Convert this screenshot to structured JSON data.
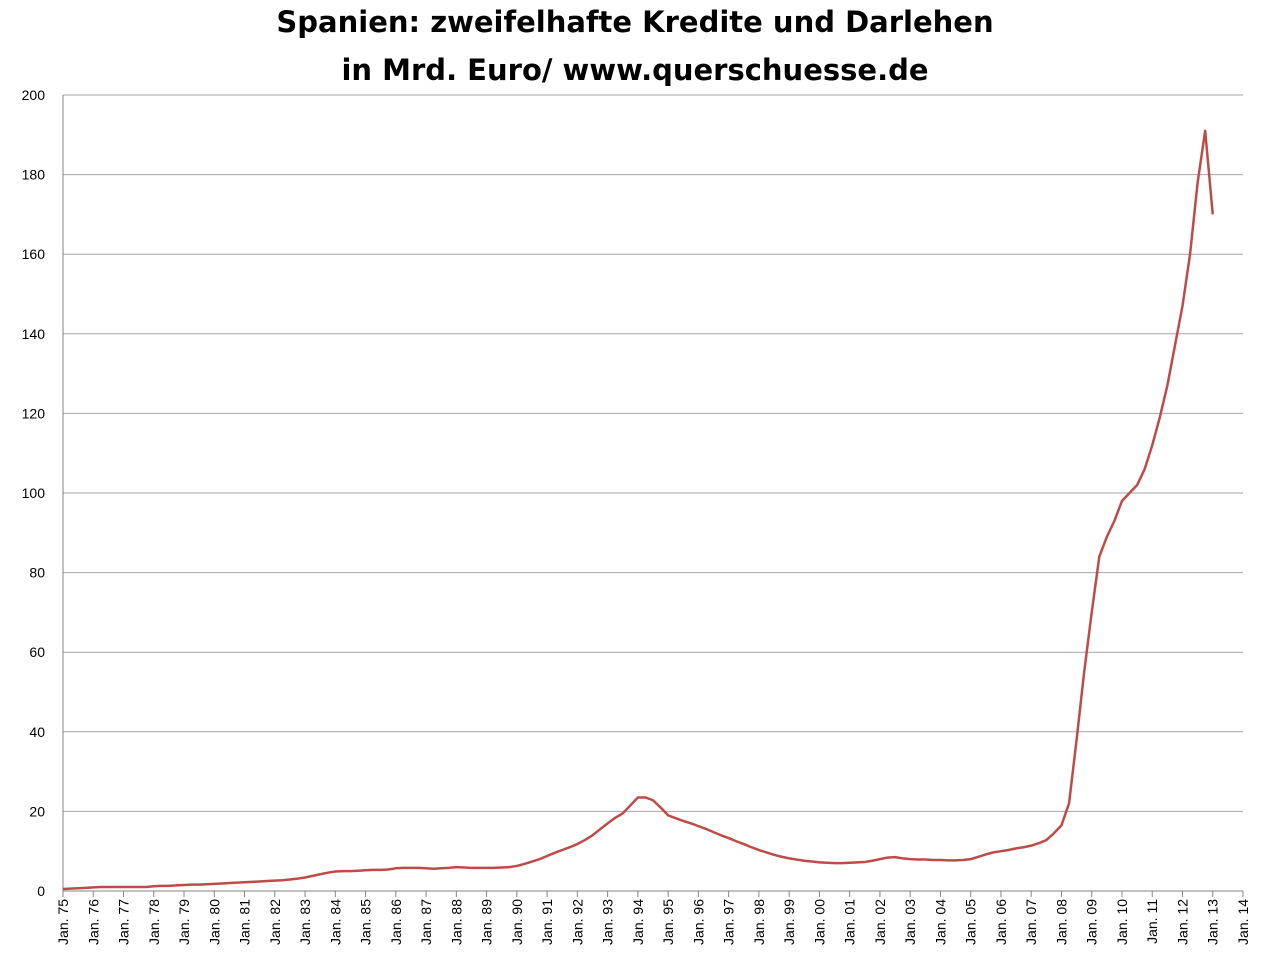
{
  "chart_data": {
    "type": "line",
    "title": "Spanien: zweifelhafte Kredite und Darlehen",
    "subtitle": "in Mrd. Euro/ www.querschuesse.de",
    "categories": [
      "Jan. 75",
      null,
      null,
      null,
      "Jan. 76",
      null,
      null,
      null,
      "Jan. 77",
      null,
      null,
      null,
      "Jan. 78",
      null,
      null,
      null,
      "Jan. 79",
      null,
      null,
      null,
      "Jan. 80",
      null,
      null,
      null,
      "Jan. 81",
      null,
      null,
      null,
      "Jan. 82",
      null,
      null,
      null,
      "Jan. 83",
      null,
      null,
      null,
      "Jan. 84",
      null,
      null,
      null,
      "Jan. 85",
      null,
      null,
      null,
      "Jan. 86",
      null,
      null,
      null,
      "Jan. 87",
      null,
      null,
      null,
      "Jan. 88",
      null,
      null,
      null,
      "Jan. 89",
      null,
      null,
      null,
      "Jan. 90",
      null,
      null,
      null,
      "Jan. 91",
      null,
      null,
      null,
      "Jan. 92",
      null,
      null,
      null,
      "Jan. 93",
      null,
      null,
      null,
      "Jan. 94",
      null,
      null,
      null,
      "Jan. 95",
      null,
      null,
      null,
      "Jan. 96",
      null,
      null,
      null,
      "Jan. 97",
      null,
      null,
      null,
      "Jan. 98",
      null,
      null,
      null,
      "Jan. 99",
      null,
      null,
      null,
      "Jan. 00",
      null,
      null,
      null,
      "Jan. 01",
      null,
      null,
      null,
      "Jan. 02",
      null,
      null,
      null,
      "Jan. 03",
      null,
      null,
      null,
      "Jan. 04",
      null,
      null,
      null,
      "Jan. 05",
      null,
      null,
      null,
      "Jan. 06",
      null,
      null,
      null,
      "Jan. 07",
      null,
      null,
      null,
      "Jan. 08",
      null,
      null,
      null,
      "Jan. 09",
      null,
      null,
      null,
      "Jan. 10",
      null,
      null,
      null,
      "Jan. 11",
      null,
      null,
      null,
      "Jan. 12",
      null,
      null,
      null,
      "Jan. 13",
      null,
      null,
      null,
      "Jan. 14"
    ],
    "values": [
      0.5,
      0.6,
      0.7,
      0.8,
      0.9,
      1,
      1,
      1,
      1,
      1,
      1,
      1,
      1.2,
      1.3,
      1.3,
      1.4,
      1.5,
      1.6,
      1.6,
      1.7,
      1.8,
      1.9,
      2,
      2.1,
      2.2,
      2.3,
      2.4,
      2.5,
      2.6,
      2.7,
      2.9,
      3.1,
      3.4,
      3.8,
      4.2,
      4.6,
      4.9,
      5,
      5,
      5.1,
      5.2,
      5.3,
      5.3,
      5.4,
      5.7,
      5.8,
      5.8,
      5.8,
      5.7,
      5.6,
      5.7,
      5.8,
      6,
      5.9,
      5.8,
      5.8,
      5.8,
      5.8,
      5.9,
      6,
      6.3,
      6.8,
      7.4,
      8,
      8.8,
      9.6,
      10.3,
      11,
      11.8,
      12.8,
      14,
      15.5,
      17,
      18.4,
      19.5,
      21.5,
      23.5,
      23.5,
      22.8,
      21,
      19,
      18.3,
      17.6,
      17,
      16.3,
      15.6,
      14.8,
      14,
      13.3,
      12.5,
      11.8,
      11,
      10.3,
      9.7,
      9.1,
      8.6,
      8.2,
      7.9,
      7.6,
      7.4,
      7.2,
      7.1,
      7,
      7,
      7.1,
      7.2,
      7.3,
      7.6,
      8,
      8.4,
      8.5,
      8.2,
      8,
      7.9,
      7.9,
      7.8,
      7.8,
      7.7,
      7.7,
      7.8,
      8,
      8.6,
      9.2,
      9.7,
      10,
      10.3,
      10.7,
      11,
      11.4,
      12,
      12.8,
      14.5,
      16.5,
      22,
      38,
      55,
      70,
      84,
      89,
      93,
      98,
      100,
      102,
      106,
      112,
      119,
      127,
      137,
      147,
      160,
      178,
      191,
      170,
      null,
      null,
      null,
      null
    ],
    "color": "#be4b48",
    "ylim": [
      0,
      200
    ],
    "yticks": [
      0,
      20,
      40,
      60,
      80,
      100,
      120,
      140,
      160,
      180,
      200
    ],
    "grid": true
  }
}
